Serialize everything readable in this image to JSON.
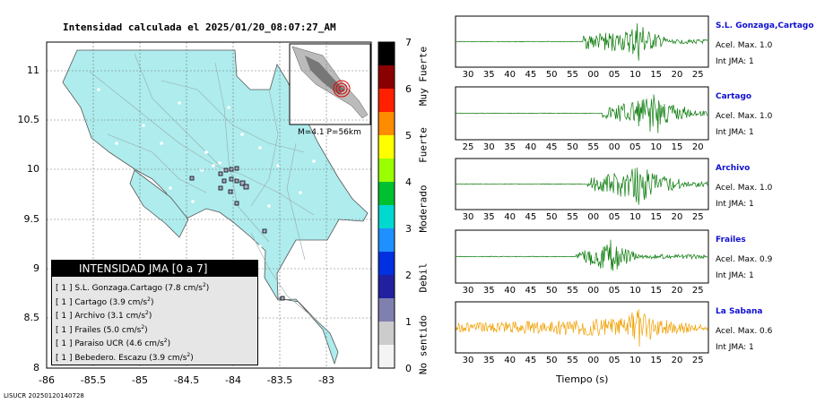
{
  "title": "Intensidad calculada el 2025/01/20_08:07:27_AM",
  "footer": "LISUCR 20250120140728",
  "map": {
    "y_ticks": [
      "11",
      "10.5",
      "10",
      "9.5",
      "9",
      "8.5",
      "8"
    ],
    "x_ticks": [
      "-86",
      "-85.5",
      "-85",
      "-84.5",
      "-84",
      "-83.5",
      "-83"
    ],
    "inset_text": "M=4.1 P=56km"
  },
  "colorbar": {
    "ticks": [
      "7",
      "6",
      "5",
      "4",
      "3",
      "2",
      "1",
      "0"
    ],
    "categories": [
      "Muy Fuerte",
      "Fuerte",
      "Moderado",
      "Debil",
      "No sentido"
    ],
    "colors": [
      "#000000",
      "#8b0000",
      "#ff0000",
      "#ff7f00",
      "#ffff00",
      "#7fff00",
      "#00c000",
      "#00ced1",
      "#1e90ff",
      "#0000cd",
      "#9999cc",
      "#ffffff"
    ]
  },
  "legend": {
    "header": "INTENSIDAD JMA [0 a 7]",
    "rows": [
      {
        "level": "[ 1 ]",
        "name": "S.L. Gonzaga.Cartago",
        "value": "(7.8 cm/s",
        "sup": "2",
        "close": ")"
      },
      {
        "level": "[ 1 ]",
        "name": "Cartago",
        "value": "(3.9 cm/s",
        "sup": "2",
        "close": ")"
      },
      {
        "level": "[ 1 ]",
        "name": "Archivo",
        "value": "(3.1 cm/s",
        "sup": "2",
        "close": ")"
      },
      {
        "level": "[ 1 ]",
        "name": "Frailes",
        "value": "(5.0 cm/s",
        "sup": "2",
        "close": ")"
      },
      {
        "level": "[ 1 ]",
        "name": "Paraiso UCR",
        "value": "(4.6 cm/s",
        "sup": "2",
        "close": ")"
      },
      {
        "level": "[ 1 ]",
        "name": "Bebedero. Escazu",
        "value": "(3.9 cm/s",
        "sup": "2",
        "close": ")"
      }
    ]
  },
  "traces": [
    {
      "name": "S.L. Gonzaga,Cartago",
      "acel": "Acel. Max. 1.0",
      "int": "Int JMA: 1",
      "color": "#0a7a0a",
      "ticks": [
        "30",
        "35",
        "40",
        "45",
        "50",
        "55",
        "00",
        "05",
        "10",
        "15",
        "20",
        "25"
      ]
    },
    {
      "name": "Cartago",
      "acel": "Acel. Max. 1.0",
      "int": "Int JMA: 1",
      "color": "#0a7a0a",
      "ticks": [
        "25",
        "30",
        "35",
        "40",
        "45",
        "50",
        "55",
        "00",
        "05",
        "10",
        "15",
        "20"
      ]
    },
    {
      "name": "Archivo",
      "acel": "Acel. Max. 1.0",
      "int": "Int JMA: 1",
      "color": "#0a7a0a",
      "ticks": [
        "30",
        "35",
        "40",
        "45",
        "50",
        "55",
        "00",
        "05",
        "10",
        "15",
        "20",
        "25"
      ]
    },
    {
      "name": "Frailes",
      "acel": "Acel. Max. 0.9",
      "int": "Int JMA: 1",
      "color": "#0a7a0a",
      "ticks": [
        "30",
        "35",
        "40",
        "45",
        "50",
        "55",
        "00",
        "05",
        "10",
        "15",
        "20",
        "25"
      ]
    },
    {
      "name": "La Sabana",
      "acel": "Acel. Max. 0.6",
      "int": "Int JMA: 1",
      "color": "#f0a000",
      "ticks": [
        "30",
        "35",
        "40",
        "45",
        "50",
        "55",
        "00",
        "05",
        "10",
        "15",
        "20",
        "25"
      ]
    }
  ],
  "time_axis_label": "Tiempo (s)"
}
